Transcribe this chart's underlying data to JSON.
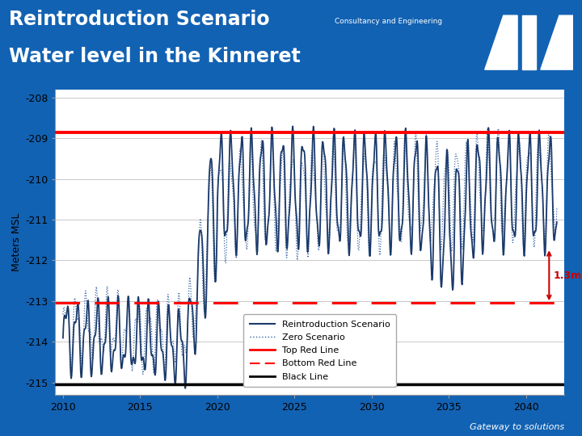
{
  "title_line1": "Reintroduction Scenario",
  "title_line2": "Water level in the Kinneret",
  "header_bg": "#1262b3",
  "header_text_color": "#ffffff",
  "plot_bg": "#ffffff",
  "footer_bg": "#1262b3",
  "footer_text": "Gateway to solutions",
  "ylabel": "Meters MSL",
  "ylim": [
    -215.3,
    -207.8
  ],
  "xlim": [
    2009.5,
    2042.5
  ],
  "yticks": [
    -208,
    -209,
    -210,
    -211,
    -212,
    -213,
    -214,
    -215
  ],
  "xticks": [
    2010,
    2015,
    2020,
    2025,
    2030,
    2035,
    2040
  ],
  "top_red_line": -208.85,
  "bottom_red_line": -213.05,
  "black_line": -215.05,
  "reintro_color": "#1b3a6b",
  "zero_color": "#2e5fa3",
  "annotation_text": "1.3m",
  "annotation_color": "#cc0000",
  "consultancy_text": "Consultancy and Engineering"
}
